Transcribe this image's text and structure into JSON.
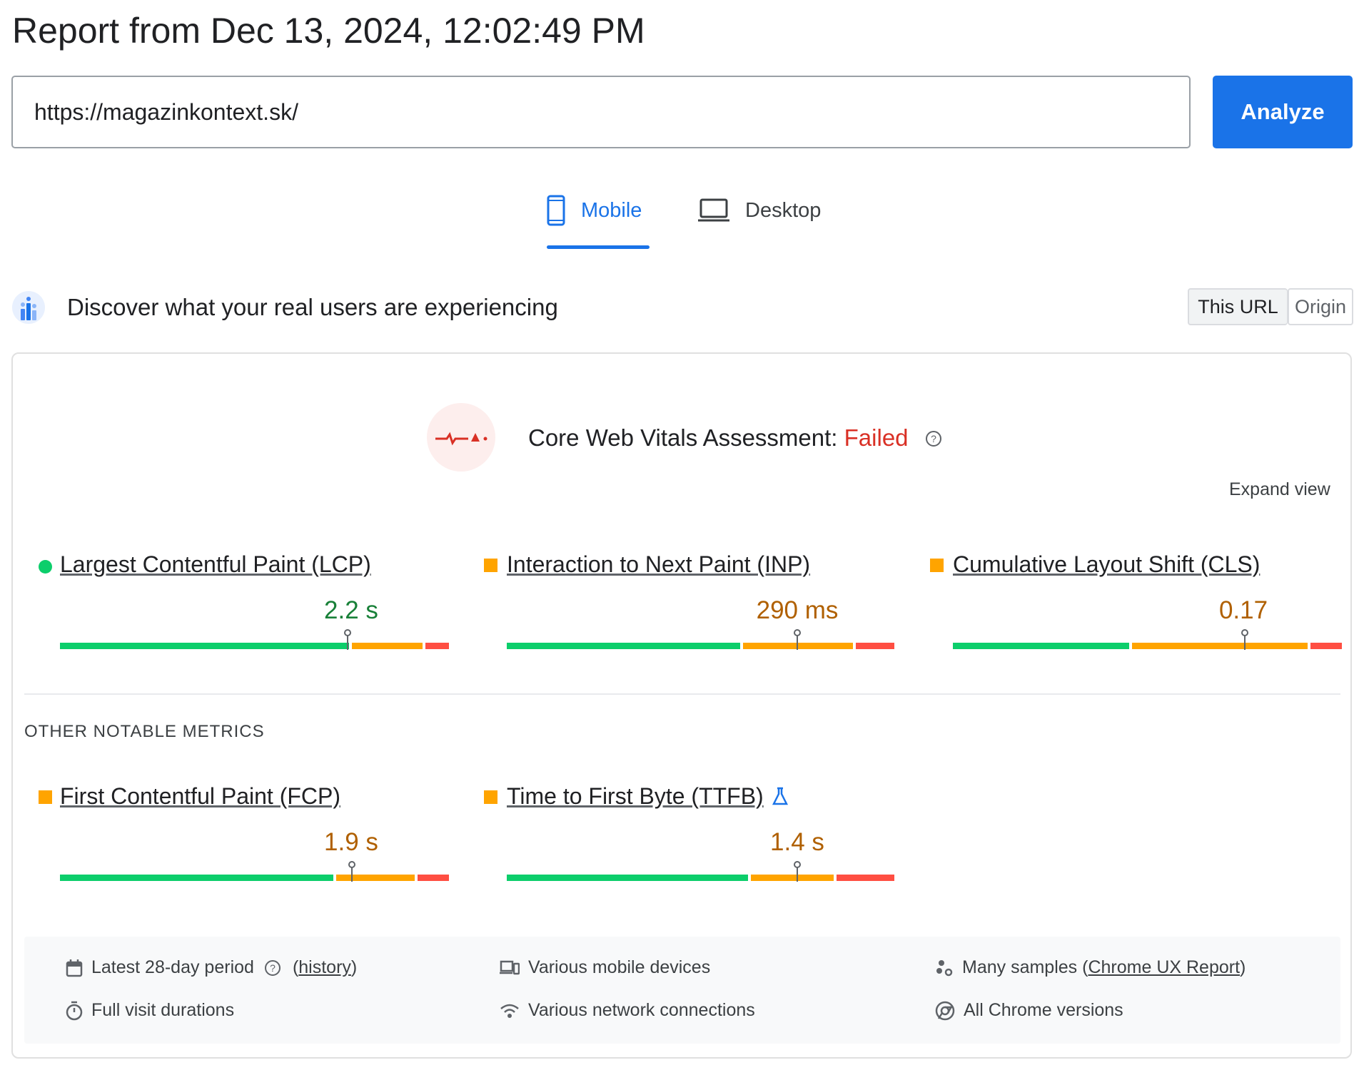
{
  "report": {
    "title": "Report from Dec 13, 2024, 12:02:49 PM"
  },
  "search": {
    "url_value": "https://magazinkontext.sk/",
    "analyze_label": "Analyze"
  },
  "tabs": {
    "mobile_label": "Mobile",
    "desktop_label": "Desktop",
    "active": "Mobile"
  },
  "crux": {
    "heading": "Discover what your real users are experiencing",
    "toggle": {
      "this_url": "This URL",
      "origin": "Origin",
      "selected": "This URL"
    }
  },
  "assessment": {
    "label": "Core Web Vitals Assessment: ",
    "status": "Failed",
    "expand_label": "Expand view"
  },
  "core_metrics": [
    {
      "name": "Largest Contentful Paint (LCP)",
      "value": "2.2 s",
      "rating": "good",
      "good_pct": 75,
      "ni_pct": 19,
      "poor_pct": 6,
      "p75_pct": 74
    },
    {
      "name": "Interaction to Next Paint (INP)",
      "value": "290 ms",
      "rating": "needs-improvement",
      "good_pct": 61,
      "ni_pct": 29,
      "poor_pct": 10,
      "p75_pct": 75
    },
    {
      "name": "Cumulative Layout Shift (CLS)",
      "value": "0.17",
      "rating": "needs-improvement",
      "good_pct": 46,
      "ni_pct": 46,
      "poor_pct": 8,
      "p75_pct": 75
    }
  ],
  "other_label": "OTHER NOTABLE METRICS",
  "other_metrics": [
    {
      "name": "First Contentful Paint (FCP)",
      "value": "1.9 s",
      "rating": "needs-improvement",
      "good_pct": 71,
      "ni_pct": 21,
      "poor_pct": 8,
      "p75_pct": 75
    },
    {
      "name": "Time to First Byte (TTFB)",
      "value": "1.4 s",
      "rating": "needs-improvement",
      "good_pct": 63,
      "ni_pct": 22,
      "poor_pct": 15,
      "p75_pct": 75
    }
  ],
  "footer": {
    "period": "Latest 28-day period",
    "history": "history",
    "devices": "Various mobile devices",
    "samples_prefix": "Many samples (",
    "samples_link": "Chrome UX Report",
    "samples_suffix": ")",
    "durations": "Full visit durations",
    "network": "Various network connections",
    "chrome": "All Chrome versions"
  },
  "colors": {
    "accent": "#1a73e8",
    "good": "#0cce6b",
    "needs_improvement": "#ffa400",
    "poor": "#ff4e42",
    "failed_text": "#d93025"
  },
  "icons": [
    "phone-icon",
    "laptop-icon",
    "crux-users-icon",
    "cwv-failed-icon",
    "help-icon",
    "lab-flask-icon",
    "calendar-icon",
    "devices-icon",
    "samples-icon",
    "timer-icon",
    "network-icon",
    "chrome-icon"
  ]
}
